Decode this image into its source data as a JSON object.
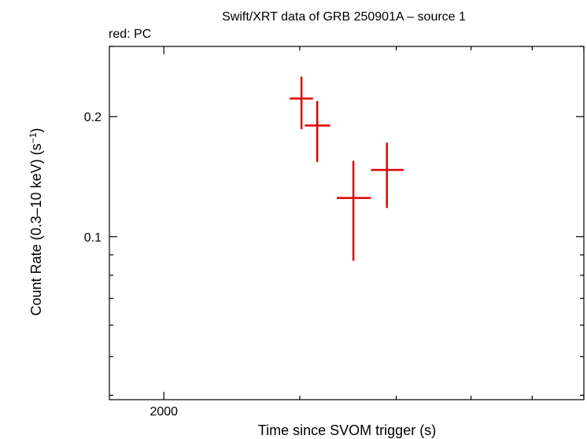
{
  "chart_data": {
    "type": "scatter",
    "title": "Swift/XRT data of GRB 250901A – source 1",
    "subtitle": "red: PC",
    "xlabel": "Time since SVOM trigger (s)",
    "ylabel_main": "Count Rate (0.3–10 keV) (s",
    "ylabel_sup": "−1",
    "ylabel_close": ")",
    "x_scale": "log",
    "y_scale": "log",
    "xlim": [
      1700,
      7000
    ],
    "ylim": [
      0.039,
      0.3
    ],
    "x_tick_labels": [
      {
        "value": 2000,
        "label": "2000"
      }
    ],
    "x_minor_ticks": [
      3000,
      4000,
      5000,
      6000,
      7000
    ],
    "y_tick_labels": [
      {
        "value": 0.1,
        "label": "0.1"
      },
      {
        "value": 0.2,
        "label": "0.2"
      }
    ],
    "y_minor_ticks": [
      0.04,
      0.05,
      0.06,
      0.07,
      0.08,
      0.09,
      0.3
    ],
    "grid": false,
    "series": [
      {
        "color": "#e00000",
        "points": [
          {
            "x": 3015,
            "xerr_lo": 105,
            "xerr_hi": 105,
            "y": 0.222,
            "yerr_lo": 0.036,
            "yerr_hi": 0.03
          },
          {
            "x": 3160,
            "xerr_lo": 115,
            "xerr_hi": 125,
            "y": 0.19,
            "yerr_lo": 0.036,
            "yerr_hi": 0.029
          },
          {
            "x": 3520,
            "xerr_lo": 170,
            "xerr_hi": 190,
            "y": 0.125,
            "yerr_lo": 0.038,
            "yerr_hi": 0.03
          },
          {
            "x": 3890,
            "xerr_lo": 180,
            "xerr_hi": 200,
            "y": 0.147,
            "yerr_lo": 0.029,
            "yerr_hi": 0.025
          }
        ]
      }
    ]
  }
}
